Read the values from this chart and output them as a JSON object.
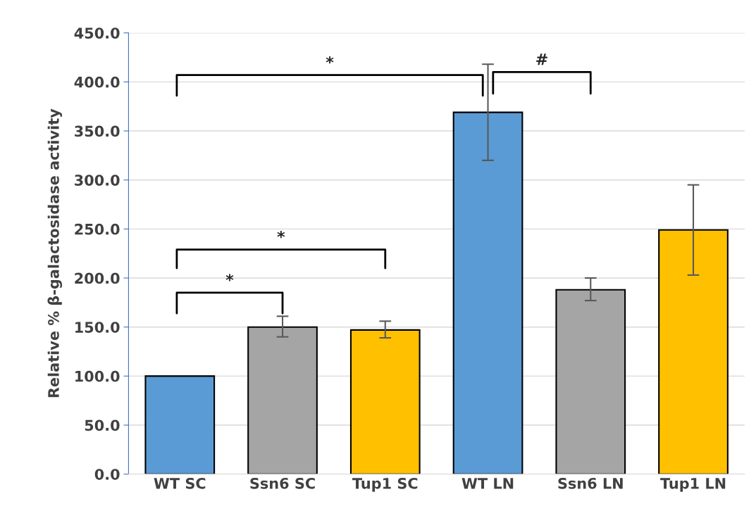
{
  "chart_data": {
    "type": "bar",
    "ylabel": "Relative % β-galactosidase activity",
    "categories": [
      "WT SC",
      "Ssn6 SC",
      "Tup1 SC",
      "WT LN",
      "Ssn6 LN",
      "Tup1 LN"
    ],
    "values": [
      100,
      150,
      147,
      369,
      188,
      249
    ],
    "errors": [
      null,
      [
        140,
        161
      ],
      [
        139,
        156
      ],
      [
        320,
        418
      ],
      [
        177,
        200
      ],
      [
        203,
        295
      ]
    ],
    "colors": [
      "#5b9bd5",
      "#a5a5a5",
      "#ffc000",
      "#5b9bd5",
      "#a5a5a5",
      "#ffc000"
    ],
    "ylim": [
      0,
      450
    ],
    "yticks": [
      {
        "value": 0,
        "label": "0.0"
      },
      {
        "value": 50,
        "label": "50.0"
      },
      {
        "value": 100,
        "label": "100.0"
      },
      {
        "value": 150,
        "label": "150.0"
      },
      {
        "value": 200,
        "label": "200.0"
      },
      {
        "value": 250,
        "label": "250.0"
      },
      {
        "value": 300,
        "label": "300.0"
      },
      {
        "value": 350,
        "label": "350.0"
      },
      {
        "value": 400,
        "label": "400.0"
      },
      {
        "value": 450,
        "label": "450.0"
      }
    ],
    "grid": "y",
    "annotations": [
      "*",
      "*",
      "*",
      "#"
    ]
  }
}
